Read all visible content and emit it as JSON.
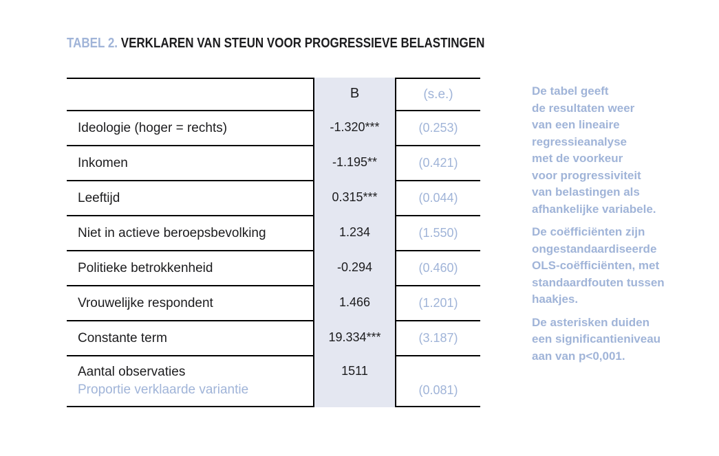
{
  "page": {
    "title_prefix": "TABEL 2.",
    "title_main": " VERKLAREN VAN STEUN VOOR PROGRESSIEVE BELASTINGEN"
  },
  "table": {
    "header": {
      "b_label": "B",
      "se_label": "(s.e.)"
    },
    "rows": [
      {
        "label": "Ideologie (hoger = rechts)",
        "b": "-1.320***",
        "se": "(0.253)"
      },
      {
        "label": "Inkomen",
        "b": "-1.195**",
        "se": "(0.421)"
      },
      {
        "label": "Leeftijd",
        "b": "0.315***",
        "se": "(0.044)"
      },
      {
        "label": "Niet in actieve beroepsbevolking",
        "b": "1.234",
        "se": "(1.550)"
      },
      {
        "label": "Politieke betrokkenheid",
        "b": "-0.294",
        "se": "(0.460)"
      },
      {
        "label": "Vrouwelijke respondent",
        "b": "1.466",
        "se": "(1.201)"
      },
      {
        "label": "Constante term",
        "b": "19.334***",
        "se": "(3.187)"
      }
    ],
    "footer": {
      "label_line1": "Aantal observaties",
      "label_line2": "Proportie verklaarde variantie",
      "b": "1511",
      "se": "(0.081)"
    }
  },
  "notes": [
    "De tabel geeft\nde resultaten weer\nvan een lineaire\nregressieanalyse\nmet de voorkeur\nvoor progressiviteit\nvan belastingen als\nafhankelijke variabele.",
    "De coëfficiënten zijn\nongestandaardiseerde\nOLS-coëfficiënten, met\nstandaardfouten tussen\nhaakjes.",
    "De asterisken duiden\neen significantieniveau\naan van p<0,001."
  ],
  "colors": {
    "accent_blue": "#a0b4d8",
    "column_highlight_bg": "#e4e7f1",
    "text_dark": "#1c1c1e",
    "rule_black": "#000000"
  }
}
